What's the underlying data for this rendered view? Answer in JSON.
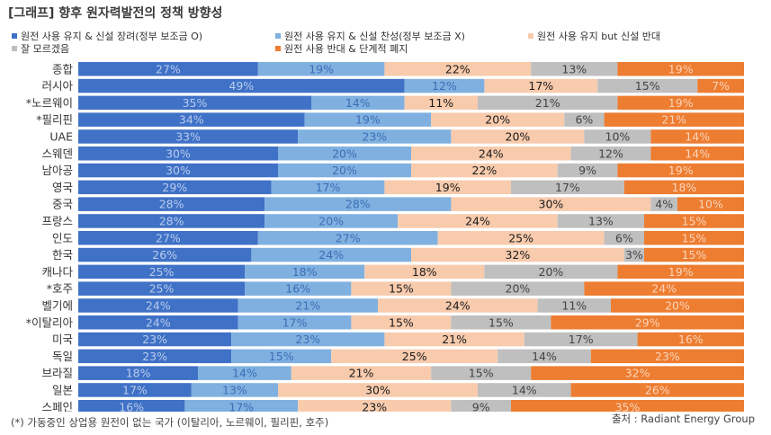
{
  "title": "[그래프] 향후 원자력발전의 정책 방향성",
  "footnote": "(*) 가동중인 상업용 원전이 없는 국가 (이탈리아, 노르웨이, 필리핀, 호주)",
  "source": "출처 : Radiant Energy Group",
  "chart_data": {
    "type": "bar",
    "orientation": "horizontal",
    "stacked": "100%",
    "legend_position": "top",
    "categories": [
      "종합",
      "러시아",
      "*노르웨이",
      "*필리핀",
      "UAE",
      "스웨덴",
      "남아공",
      "영국",
      "중국",
      "프랑스",
      "인도",
      "한국",
      "캐나다",
      "*호주",
      "벨기에",
      "*이탈리아",
      "미국",
      "독일",
      "브라질",
      "일본",
      "스페인"
    ],
    "series": [
      {
        "name": "원전 사용 유지 & 신설 장려(정부 보조금 O)",
        "color": "#3F71C6",
        "label_color": "#B9CCEC",
        "values": [
          27,
          49,
          35,
          34,
          33,
          30,
          30,
          29,
          28,
          28,
          27,
          26,
          25,
          25,
          24,
          24,
          23,
          23,
          18,
          17,
          16
        ]
      },
      {
        "name": "원전 사용 유지 & 신설 찬성(정부 보조금 X)",
        "color": "#7FB0E0",
        "label_color": "#3B6FB5",
        "values": [
          19,
          12,
          14,
          19,
          23,
          20,
          20,
          17,
          28,
          20,
          27,
          24,
          18,
          16,
          21,
          17,
          23,
          15,
          14,
          13,
          17
        ]
      },
      {
        "name": "원전 사용 유지 but 신설 반대",
        "color": "#F8CBAD",
        "label_color": "#1A1A1A",
        "values": [
          22,
          17,
          11,
          20,
          20,
          24,
          22,
          19,
          30,
          24,
          25,
          32,
          18,
          15,
          24,
          15,
          21,
          25,
          21,
          30,
          23
        ]
      },
      {
        "name": "잘 모르겠음",
        "color": "#BFBFBF",
        "label_color": "#444444",
        "values": [
          13,
          15,
          21,
          6,
          10,
          12,
          9,
          17,
          4,
          13,
          6,
          3,
          20,
          20,
          11,
          15,
          17,
          14,
          15,
          14,
          9
        ]
      },
      {
        "name": "원전 사용 반대 & 단계적 폐지",
        "color": "#ED7D31",
        "label_color": "#FBD5BB",
        "values": [
          19,
          7,
          19,
          21,
          14,
          14,
          19,
          18,
          10,
          15,
          15,
          15,
          19,
          24,
          20,
          29,
          16,
          23,
          32,
          26,
          35
        ]
      }
    ]
  }
}
